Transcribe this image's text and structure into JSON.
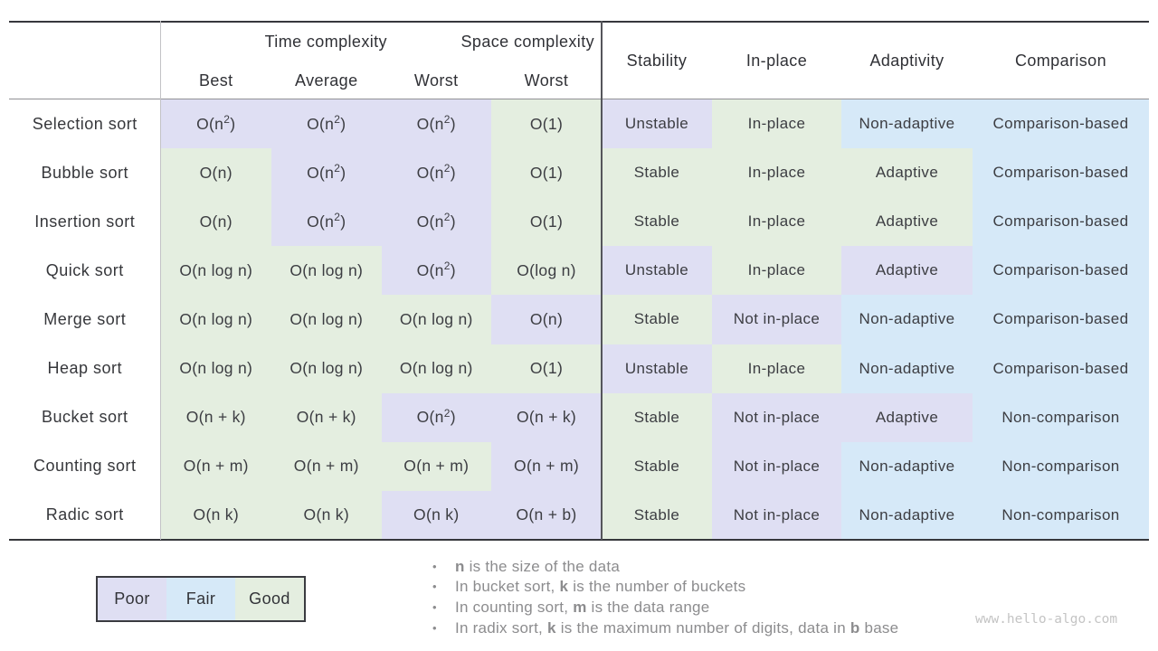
{
  "colors": {
    "poor": "#DFDFF3",
    "fair": "#D6E9F8",
    "good": "#E4EEE0"
  },
  "table": {
    "header": {
      "time_group": "Time complexity",
      "space_group": "Space complexity",
      "sub_cols": [
        "Best",
        "Average",
        "Worst",
        "Worst"
      ],
      "attr_cols": [
        "Stability",
        "In-place",
        "Adaptivity",
        "Comparison"
      ]
    },
    "rows": [
      {
        "name": "Selection sort",
        "cells": [
          {
            "text": "O(n²)",
            "rating": "poor"
          },
          {
            "text": "O(n²)",
            "rating": "poor"
          },
          {
            "text": "O(n²)",
            "rating": "poor"
          },
          {
            "text": "O(1)",
            "rating": "good"
          },
          {
            "text": "Unstable",
            "rating": "poor"
          },
          {
            "text": "In-place",
            "rating": "good"
          },
          {
            "text": "Non-adaptive",
            "rating": "fair"
          },
          {
            "text": "Comparison-based",
            "rating": "fair"
          }
        ]
      },
      {
        "name": "Bubble sort",
        "cells": [
          {
            "text": "O(n)",
            "rating": "good"
          },
          {
            "text": "O(n²)",
            "rating": "poor"
          },
          {
            "text": "O(n²)",
            "rating": "poor"
          },
          {
            "text": "O(1)",
            "rating": "good"
          },
          {
            "text": "Stable",
            "rating": "good"
          },
          {
            "text": "In-place",
            "rating": "good"
          },
          {
            "text": "Adaptive",
            "rating": "good"
          },
          {
            "text": "Comparison-based",
            "rating": "fair"
          }
        ]
      },
      {
        "name": "Insertion sort",
        "cells": [
          {
            "text": "O(n)",
            "rating": "good"
          },
          {
            "text": "O(n²)",
            "rating": "poor"
          },
          {
            "text": "O(n²)",
            "rating": "poor"
          },
          {
            "text": "O(1)",
            "rating": "good"
          },
          {
            "text": "Stable",
            "rating": "good"
          },
          {
            "text": "In-place",
            "rating": "good"
          },
          {
            "text": "Adaptive",
            "rating": "good"
          },
          {
            "text": "Comparison-based",
            "rating": "fair"
          }
        ]
      },
      {
        "name": "Quick sort",
        "cells": [
          {
            "text": "O(n log n)",
            "rating": "good"
          },
          {
            "text": "O(n log n)",
            "rating": "good"
          },
          {
            "text": "O(n²)",
            "rating": "poor"
          },
          {
            "text": "O(log n)",
            "rating": "good"
          },
          {
            "text": "Unstable",
            "rating": "poor"
          },
          {
            "text": "In-place",
            "rating": "good"
          },
          {
            "text": "Adaptive",
            "rating": "poor"
          },
          {
            "text": "Comparison-based",
            "rating": "fair"
          }
        ]
      },
      {
        "name": "Merge sort",
        "cells": [
          {
            "text": "O(n log n)",
            "rating": "good"
          },
          {
            "text": "O(n log n)",
            "rating": "good"
          },
          {
            "text": "O(n log n)",
            "rating": "good"
          },
          {
            "text": "O(n)",
            "rating": "poor"
          },
          {
            "text": "Stable",
            "rating": "good"
          },
          {
            "text": "Not in-place",
            "rating": "poor"
          },
          {
            "text": "Non-adaptive",
            "rating": "fair"
          },
          {
            "text": "Comparison-based",
            "rating": "fair"
          }
        ]
      },
      {
        "name": "Heap sort",
        "cells": [
          {
            "text": "O(n log n)",
            "rating": "good"
          },
          {
            "text": "O(n log n)",
            "rating": "good"
          },
          {
            "text": "O(n log n)",
            "rating": "good"
          },
          {
            "text": "O(1)",
            "rating": "good"
          },
          {
            "text": "Unstable",
            "rating": "poor"
          },
          {
            "text": "In-place",
            "rating": "good"
          },
          {
            "text": "Non-adaptive",
            "rating": "fair"
          },
          {
            "text": "Comparison-based",
            "rating": "fair"
          }
        ]
      },
      {
        "name": "Bucket sort",
        "cells": [
          {
            "text": "O(n + k)",
            "rating": "good"
          },
          {
            "text": "O(n + k)",
            "rating": "good"
          },
          {
            "text": "O(n²)",
            "rating": "poor"
          },
          {
            "text": "O(n + k)",
            "rating": "poor"
          },
          {
            "text": "Stable",
            "rating": "good"
          },
          {
            "text": "Not in-place",
            "rating": "poor"
          },
          {
            "text": "Adaptive",
            "rating": "poor"
          },
          {
            "text": "Non-comparison",
            "rating": "fair"
          }
        ]
      },
      {
        "name": "Counting sort",
        "cells": [
          {
            "text": "O(n + m)",
            "rating": "good"
          },
          {
            "text": "O(n + m)",
            "rating": "good"
          },
          {
            "text": "O(n + m)",
            "rating": "good"
          },
          {
            "text": "O(n + m)",
            "rating": "poor"
          },
          {
            "text": "Stable",
            "rating": "good"
          },
          {
            "text": "Not in-place",
            "rating": "poor"
          },
          {
            "text": "Non-adaptive",
            "rating": "fair"
          },
          {
            "text": "Non-comparison",
            "rating": "fair"
          }
        ]
      },
      {
        "name": "Radic sort",
        "cells": [
          {
            "text": "O(n k)",
            "rating": "good"
          },
          {
            "text": "O(n k)",
            "rating": "good"
          },
          {
            "text": "O(n k)",
            "rating": "poor"
          },
          {
            "text": "O(n + b)",
            "rating": "poor"
          },
          {
            "text": "Stable",
            "rating": "good"
          },
          {
            "text": "Not in-place",
            "rating": "poor"
          },
          {
            "text": "Non-adaptive",
            "rating": "fair"
          },
          {
            "text": "Non-comparison",
            "rating": "fair"
          }
        ]
      }
    ]
  },
  "legend": {
    "items": [
      {
        "label": "Poor",
        "rating": "poor"
      },
      {
        "label": "Fair",
        "rating": "fair"
      },
      {
        "label": "Good",
        "rating": "good"
      }
    ]
  },
  "notes": [
    {
      "segments": [
        {
          "text": "n",
          "bold": true
        },
        {
          "text": " is the size of the data",
          "bold": false
        }
      ]
    },
    {
      "segments": [
        {
          "text": "In bucket sort, ",
          "bold": false
        },
        {
          "text": "k",
          "bold": true
        },
        {
          "text": " is the number of buckets",
          "bold": false
        }
      ]
    },
    {
      "segments": [
        {
          "text": "In counting sort, ",
          "bold": false
        },
        {
          "text": "m",
          "bold": true
        },
        {
          "text": " is the data range",
          "bold": false
        }
      ]
    },
    {
      "segments": [
        {
          "text": "In radix sort, ",
          "bold": false
        },
        {
          "text": "k",
          "bold": true
        },
        {
          "text": " is the maximum number of digits, data in ",
          "bold": false
        },
        {
          "text": "b",
          "bold": true
        },
        {
          "text": " base",
          "bold": false
        }
      ]
    }
  ],
  "watermark": "www.hello-algo.com"
}
